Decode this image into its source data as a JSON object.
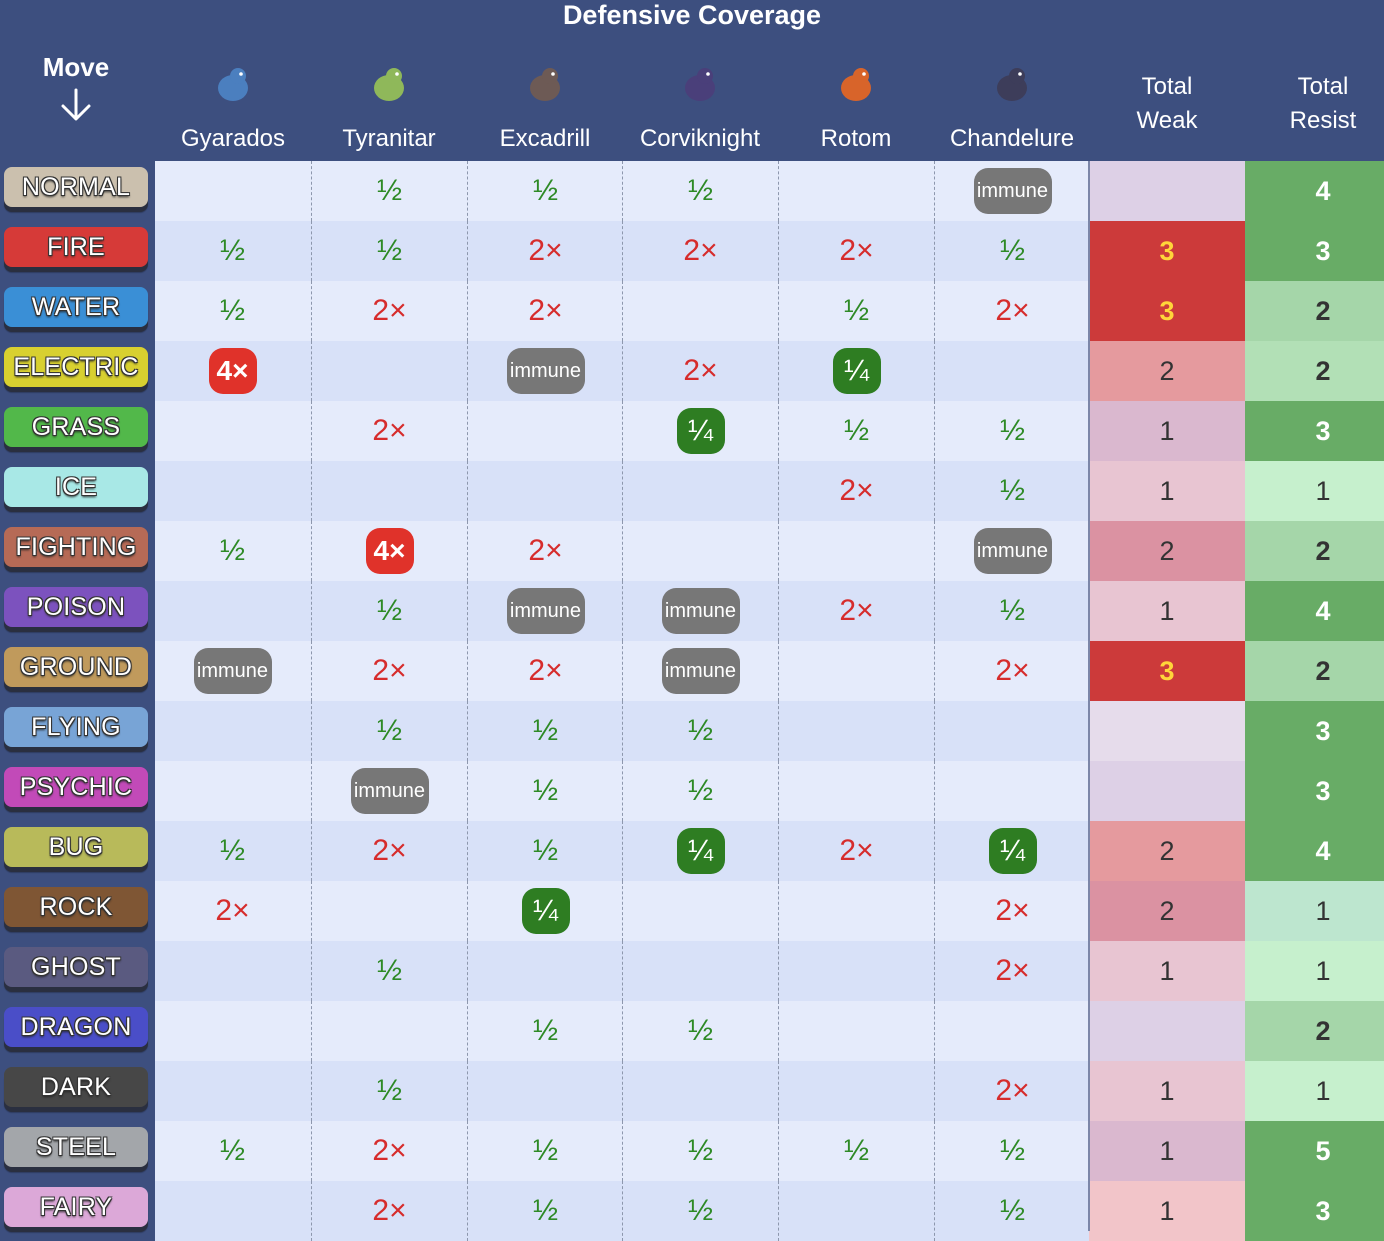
{
  "title": "Defensive Coverage",
  "move_header": "Move",
  "totals_header": {
    "weak": [
      "Total",
      "Weak"
    ],
    "resist": [
      "Total",
      "Resist"
    ]
  },
  "pokemon": [
    {
      "name": "Gyarados",
      "sprite_icon": "gyarados-sprite-icon",
      "color": "#4b7fbf"
    },
    {
      "name": "Tyranitar",
      "sprite_icon": "tyranitar-sprite-icon",
      "color": "#8fb85a"
    },
    {
      "name": "Excadrill",
      "sprite_icon": "excadrill-sprite-icon",
      "color": "#6d5a55"
    },
    {
      "name": "Corviknight",
      "sprite_icon": "corviknight-sprite-icon",
      "color": "#4a3f7a"
    },
    {
      "name": "Rotom",
      "sprite_icon": "rotom-sprite-icon",
      "color": "#d8642a"
    },
    {
      "name": "Chandelure",
      "sprite_icon": "chandelure-sprite-icon",
      "color": "#3d3d5a"
    }
  ],
  "colors": {
    "row_odd": "#e5ebfb",
    "row_even": "#d8e1f8",
    "half": "#2e8a26",
    "weak2": "#d62c2c",
    "immune_badge": "#777777",
    "four_badge": "#e0322a",
    "quarter_badge": "#2e7d22"
  },
  "rows": [
    {
      "type": "NORMAL",
      "color": "#cbc0ae",
      "cells": [
        "",
        "½",
        "½",
        "½",
        "",
        "immune"
      ],
      "weak": "",
      "resist": "4",
      "weak_bg": "#ddd0e6",
      "resist_bg": "#68ac66"
    },
    {
      "type": "FIRE",
      "color": "#d63a38",
      "cells": [
        "½",
        "½",
        "2×",
        "2×",
        "2×",
        "½"
      ],
      "weak": "3",
      "resist": "3",
      "weak_bg": "#cc3a3a",
      "resist_bg": "#68ac66"
    },
    {
      "type": "WATER",
      "color": "#3a8fd6",
      "cells": [
        "½",
        "2×",
        "2×",
        "",
        "½",
        "2×"
      ],
      "weak": "3",
      "resist": "2",
      "weak_bg": "#cc3a3a",
      "resist_bg": "#a5d6a9"
    },
    {
      "type": "ELECTRIC",
      "color": "#d8d030",
      "cells": [
        "4×",
        "",
        "immune",
        "2×",
        "¼",
        ""
      ],
      "weak": "2",
      "resist": "2",
      "weak_bg": "#e59a9e",
      "resist_bg": "#b2e0b6"
    },
    {
      "type": "GRASS",
      "color": "#52b84a",
      "cells": [
        "",
        "2×",
        "",
        "¼",
        "½",
        "½"
      ],
      "weak": "1",
      "resist": "3",
      "weak_bg": "#dab8cf",
      "resist_bg": "#68ac66"
    },
    {
      "type": "ICE",
      "color": "#a8e8e6",
      "cells": [
        "",
        "",
        "",
        "",
        "2×",
        "½"
      ],
      "weak": "1",
      "resist": "1",
      "weak_bg": "#e8c5d2",
      "resist_bg": "#c6f0cd"
    },
    {
      "type": "FIGHTING",
      "color": "#b66a56",
      "cells": [
        "½",
        "4×",
        "2×",
        "",
        "",
        "immune"
      ],
      "weak": "2",
      "resist": "2",
      "weak_bg": "#db92a2",
      "resist_bg": "#a5d6a9"
    },
    {
      "type": "POISON",
      "color": "#7c52be",
      "cells": [
        "",
        "½",
        "immune",
        "immune",
        "2×",
        "½"
      ],
      "weak": "1",
      "resist": "4",
      "weak_bg": "#e8c5d2",
      "resist_bg": "#68ac66"
    },
    {
      "type": "GROUND",
      "color": "#c09a5c",
      "cells": [
        "immune",
        "2×",
        "2×",
        "immune",
        "",
        "2×"
      ],
      "weak": "3",
      "resist": "2",
      "weak_bg": "#cc3a3a",
      "resist_bg": "#a5d6a9"
    },
    {
      "type": "FLYING",
      "color": "#78a4d6",
      "cells": [
        "",
        "½",
        "½",
        "½",
        "",
        ""
      ],
      "weak": "",
      "resist": "3",
      "weak_bg": "#e6dceb",
      "resist_bg": "#68ac66"
    },
    {
      "type": "PSYCHIC",
      "color": "#c24ab8",
      "cells": [
        "",
        "immune",
        "½",
        "½",
        "",
        ""
      ],
      "weak": "",
      "resist": "3",
      "weak_bg": "#ddd0e6",
      "resist_bg": "#68ac66"
    },
    {
      "type": "BUG",
      "color": "#b8ba5a",
      "cells": [
        "½",
        "2×",
        "½",
        "¼",
        "2×",
        "¼"
      ],
      "weak": "2",
      "resist": "4",
      "weak_bg": "#e59a9e",
      "resist_bg": "#68ac66"
    },
    {
      "type": "ROCK",
      "color": "#7f5634",
      "cells": [
        "2×",
        "",
        "¼",
        "",
        "",
        "2×"
      ],
      "weak": "2",
      "resist": "1",
      "weak_bg": "#db92a2",
      "resist_bg": "#bde6cf"
    },
    {
      "type": "GHOST",
      "color": "#5a5a80",
      "cells": [
        "",
        "½",
        "",
        "",
        "",
        "2×"
      ],
      "weak": "1",
      "resist": "1",
      "weak_bg": "#e8c5d2",
      "resist_bg": "#c6f0cd"
    },
    {
      "type": "DRAGON",
      "color": "#4a4ec8",
      "cells": [
        "",
        "",
        "½",
        "½",
        "",
        ""
      ],
      "weak": "",
      "resist": "2",
      "weak_bg": "#ddd0e6",
      "resist_bg": "#a5d6a9"
    },
    {
      "type": "DARK",
      "color": "#474747",
      "cells": [
        "",
        "½",
        "",
        "",
        "",
        "2×"
      ],
      "weak": "1",
      "resist": "1",
      "weak_bg": "#e8c5d2",
      "resist_bg": "#c6f0cd"
    },
    {
      "type": "STEEL",
      "color": "#a3a6aa",
      "cells": [
        "½",
        "2×",
        "½",
        "½",
        "½",
        "½"
      ],
      "weak": "1",
      "resist": "5",
      "weak_bg": "#dab8cf",
      "resist_bg": "#68ac66"
    },
    {
      "type": "FAIRY",
      "color": "#dca8d8",
      "cells": [
        "",
        "2×",
        "½",
        "½",
        "",
        "½"
      ],
      "weak": "1",
      "resist": "3",
      "weak_bg": "#f2c5c9",
      "resist_bg": "#68ac66"
    }
  ]
}
